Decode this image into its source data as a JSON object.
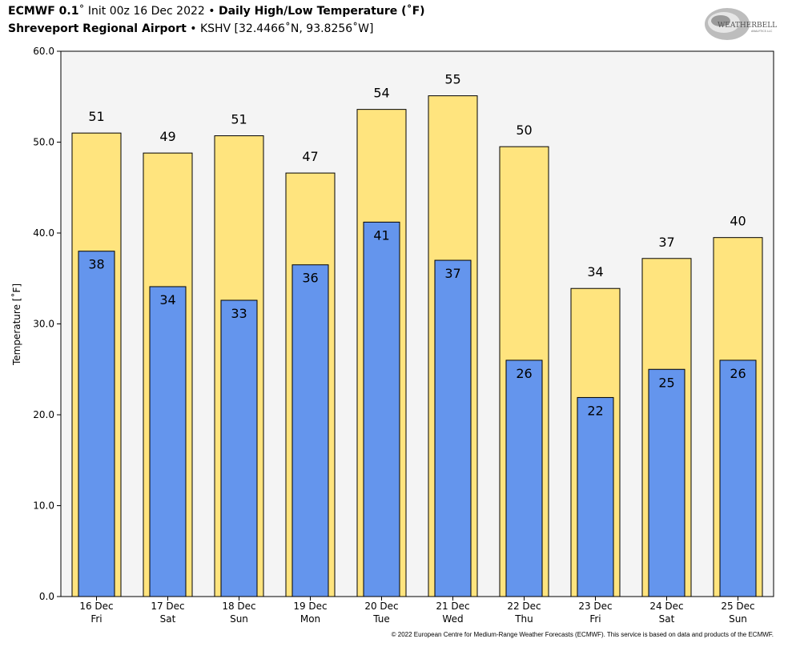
{
  "header": {
    "model": "ECMWF 0.1",
    "deg": "˚",
    "init": "Init 00z 16 Dec 2022",
    "bullet": "•",
    "product": "Daily High/Low Temperature (˚F)",
    "station": "Shreveport Regional Airport",
    "station_meta": "KSHV [32.4466˚N, 93.8256˚W]"
  },
  "logo": {
    "text_main": "WEATHERBELL",
    "text_small": "ANALYTICS LLC"
  },
  "footer": "© 2022 European Centre for Medium-Range Weather Forecasts (ECMWF). This service is based on data and products of the ECMWF.",
  "colors": {
    "high": "#FFE47E",
    "low": "#6495ED",
    "plot_bg": "#F4F4F4",
    "outline": "#000000"
  },
  "chart_data": {
    "type": "bar",
    "title": "Daily High/Low Temperature (˚F)",
    "ylabel": "Temperature [˚F]",
    "xlabel": "",
    "ylim": [
      0,
      60
    ],
    "yticks": [
      "0.0",
      "10.0",
      "20.0",
      "30.0",
      "40.0",
      "50.0",
      "60.0"
    ],
    "categories": [
      {
        "date": "16 Dec",
        "day": "Fri"
      },
      {
        "date": "17 Dec",
        "day": "Sat"
      },
      {
        "date": "18 Dec",
        "day": "Sun"
      },
      {
        "date": "19 Dec",
        "day": "Mon"
      },
      {
        "date": "20 Dec",
        "day": "Tue"
      },
      {
        "date": "21 Dec",
        "day": "Wed"
      },
      {
        "date": "22 Dec",
        "day": "Thu"
      },
      {
        "date": "23 Dec",
        "day": "Fri"
      },
      {
        "date": "24 Dec",
        "day": "Sat"
      },
      {
        "date": "25 Dec",
        "day": "Sun"
      }
    ],
    "series": [
      {
        "name": "High",
        "values": [
          51.0,
          48.8,
          50.7,
          46.6,
          53.6,
          55.1,
          49.5,
          33.9,
          37.2,
          39.5
        ],
        "labels": [
          "51",
          "49",
          "51",
          "47",
          "54",
          "55",
          "50",
          "34",
          "37",
          "40"
        ]
      },
      {
        "name": "Low",
        "values": [
          38.0,
          34.1,
          32.6,
          36.5,
          41.2,
          37.0,
          26.0,
          21.9,
          25.0,
          26.0
        ],
        "labels": [
          "38",
          "34",
          "33",
          "36",
          "41",
          "37",
          "26",
          "22",
          "25",
          "26"
        ]
      }
    ]
  }
}
